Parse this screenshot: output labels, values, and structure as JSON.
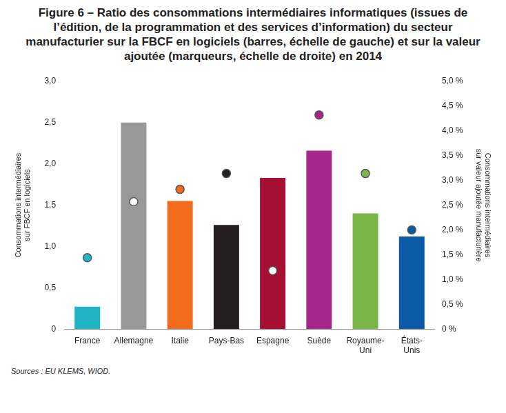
{
  "chart_data": {
    "type": "bar",
    "title": "Figure 6 – Ratio des consommations intermédiaires informatiques (issues de l’édition, de la programmation et des services d’information) du secteur manufacturier sur la FBCF en logiciels (barres, échelle de gauche) et sur la valeur ajoutée (marqueurs, échelle de droite) en 2014",
    "y_label": [
      "Consommations intermédiaires",
      "sur FBCF en logiciels"
    ],
    "y2_label": [
      "Consommations intermédiaires",
      "sur valeur ajoutée manufacturière"
    ],
    "categories": [
      "France",
      "Allemagne",
      "Italie",
      "Pays-Bas",
      "Espagne",
      "Suède",
      "Royaume-Uni",
      "États-Unis"
    ],
    "series": [
      {
        "type": "bar",
        "axis": "y",
        "colors": [
          "#1fb3c4",
          "#999999",
          "#f26a1b",
          "#231f20",
          "#a50f32",
          "#a6288a",
          "#7ab648",
          "#0a5aa5"
        ],
        "values": [
          0.27,
          2.5,
          1.55,
          1.26,
          1.83,
          2.16,
          1.4,
          1.12
        ]
      },
      {
        "type": "scatter",
        "axis": "y2",
        "marker": "circle",
        "colors": [
          "#1fb3c4",
          "#ffffff",
          "#f26a1b",
          "#231f20",
          "#ffffff",
          "#a6288a",
          "#7ab648",
          "#0a5aa5"
        ],
        "values": [
          1.44,
          2.57,
          2.82,
          3.14,
          1.18,
          4.32,
          3.14,
          2.0
        ]
      }
    ],
    "ylim": [
      0,
      3
    ],
    "yticks": [
      0,
      {
        "value": 0.5,
        "label": "0,5"
      },
      {
        "value": 1,
        "label": "1,0"
      },
      {
        "value": 1.5,
        "label": "1,5"
      },
      {
        "value": 2,
        "label": "2,0"
      },
      {
        "value": 2.5,
        "label": "2,5"
      },
      {
        "value": 3,
        "label": "3,0"
      }
    ],
    "y2lim": [
      0,
      5
    ],
    "y2ticks": [
      {
        "value": 0,
        "label": "0 %"
      },
      {
        "value": 0.5,
        "label": "0,5 %"
      },
      {
        "value": 1,
        "label": "1,0 %"
      },
      {
        "value": 1.5,
        "label": "1,5 %"
      },
      {
        "value": 2,
        "label": "2,0 %"
      },
      {
        "value": 2.5,
        "label": "2,5 %"
      },
      {
        "value": 3,
        "label": "3,0 %"
      },
      {
        "value": 3.5,
        "label": "3,5 %"
      },
      {
        "value": 4,
        "label": "4,0 %"
      },
      {
        "value": 4.5,
        "label": "4,5 %"
      },
      {
        "value": 5,
        "label": "5,0 %"
      }
    ],
    "grid": false,
    "source": "Sources : EU KLEMS, WIOD."
  }
}
